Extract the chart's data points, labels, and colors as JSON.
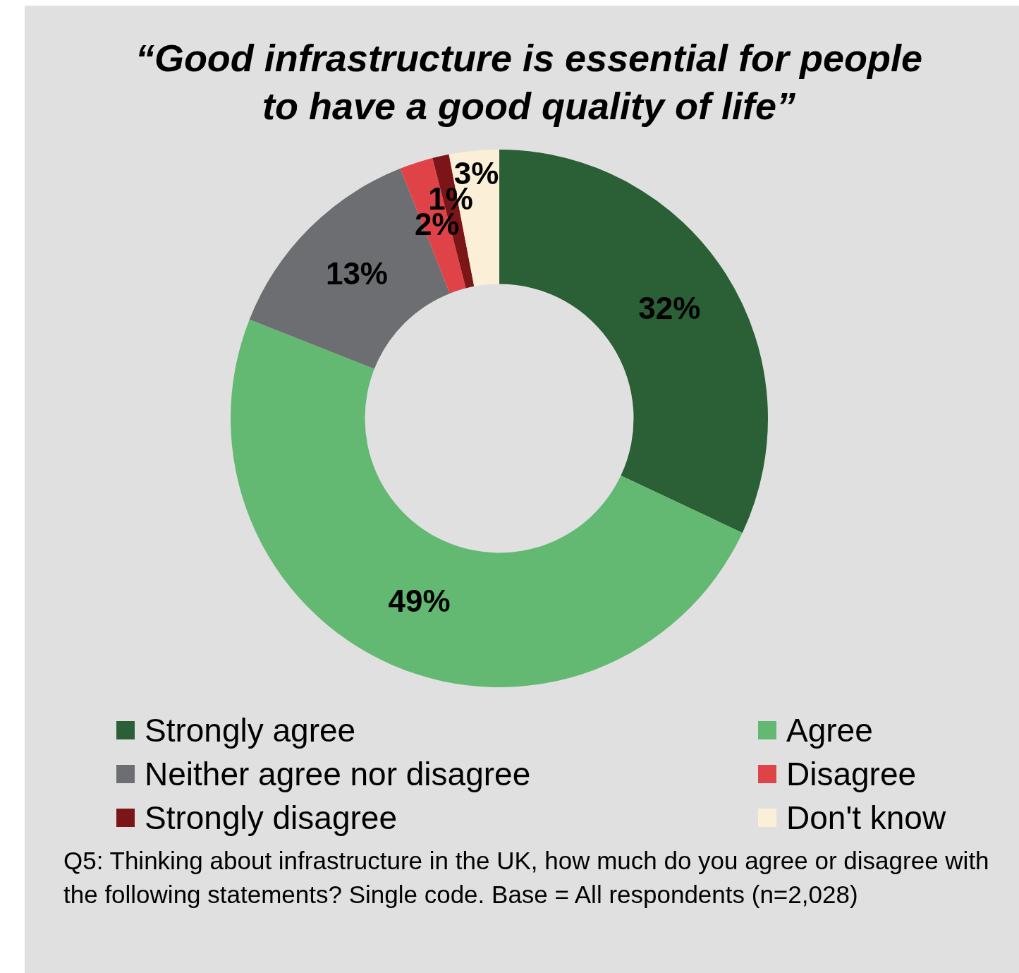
{
  "chart_data": {
    "type": "donut",
    "title": "“Good infrastructure is essential for people to have a good quality of life”",
    "categories": [
      "Strongly agree",
      "Agree",
      "Neither agree nor disagree",
      "Disagree",
      "Strongly disagree",
      "Don't know"
    ],
    "values": [
      32,
      49,
      13,
      2,
      1,
      3
    ],
    "colors": [
      "#2b5f36",
      "#63b972",
      "#6d6e71",
      "#e04347",
      "#7b1517",
      "#fbf0d7"
    ],
    "value_labels": [
      "32%",
      "49%",
      "13%",
      "2%",
      "1%",
      "3%"
    ],
    "legend": "bottom",
    "annotations": [
      "Q5: Thinking about infrastructure in the UK, how much do you agree or disagree with the following statements? Single code. Base = All respondents (n=2,028)"
    ]
  }
}
